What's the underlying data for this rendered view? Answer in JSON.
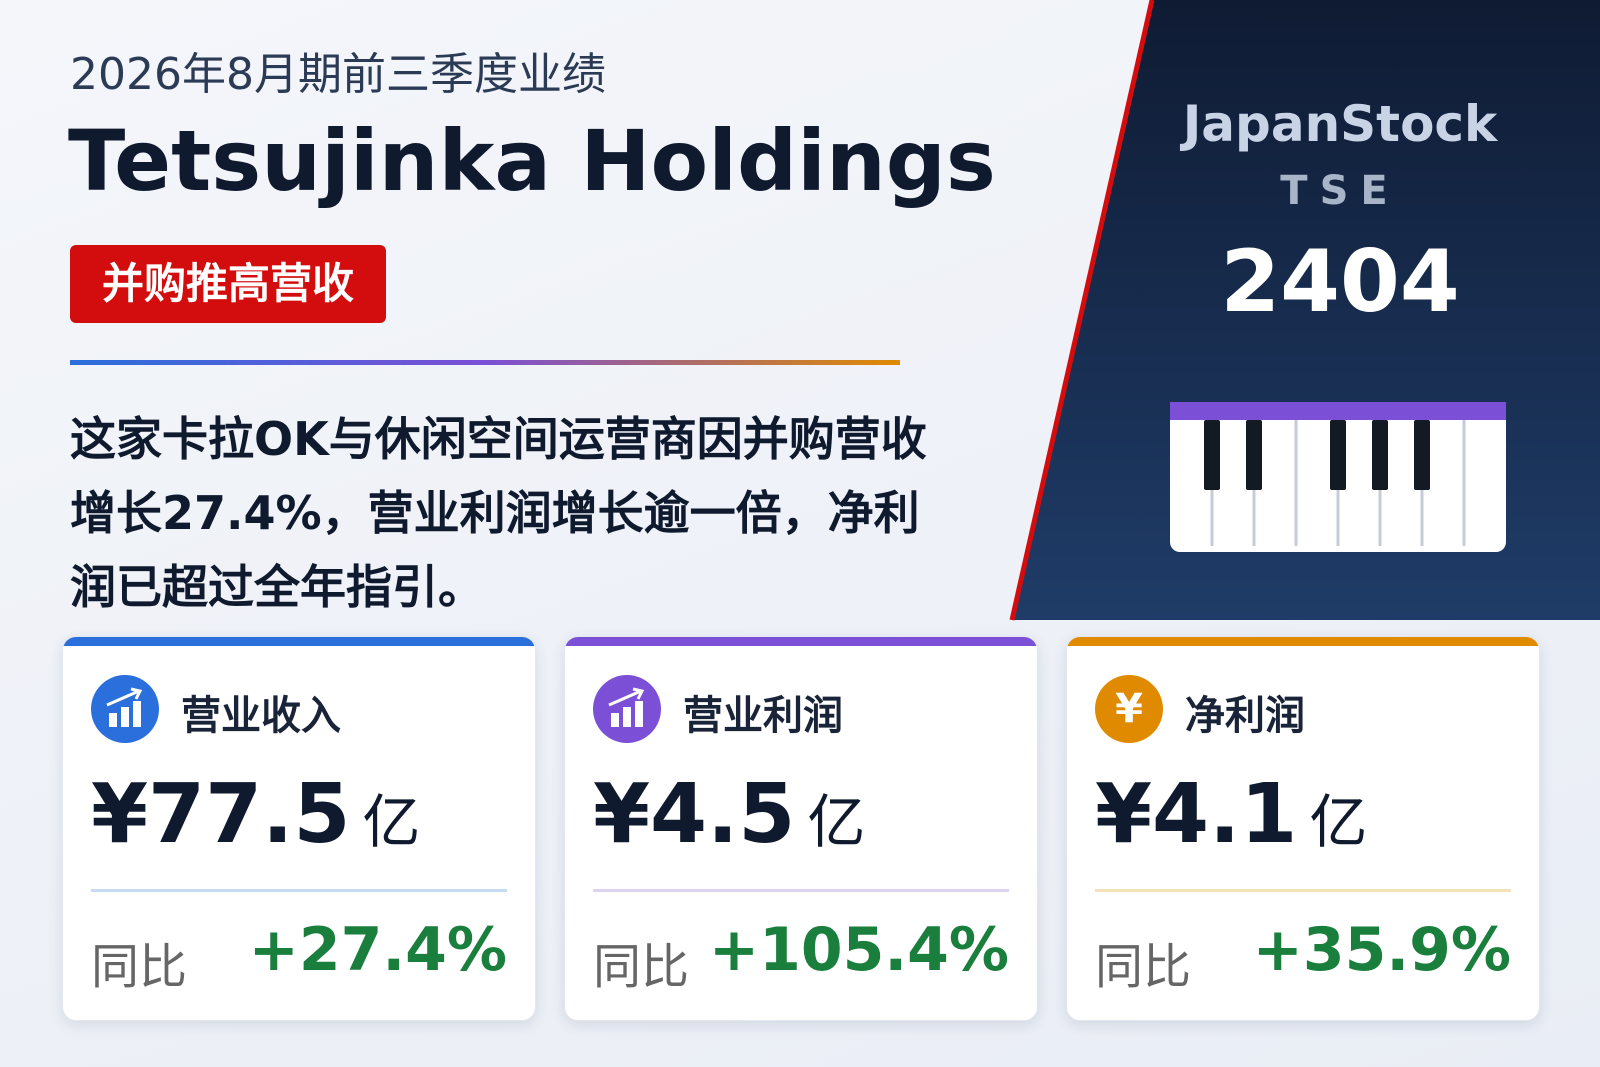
{
  "header": {
    "period": "2026年8月期前三季度业绩",
    "company": "Tetsujinka Holdings",
    "tag": "并购推高营收"
  },
  "summary": "这家卡拉OK与休闲空间运营商因并购营收增长27.4%，营业利润增长逾一倍，净利润已超过全年指引。",
  "badge": {
    "brand": "JapanStock",
    "exchange": "TSE",
    "code": "2404"
  },
  "cards": [
    {
      "label": "营业收入",
      "value": "¥77.5",
      "unit": "亿",
      "yoy_label": "同比",
      "yoy": "+27.4%"
    },
    {
      "label": "营业利润",
      "value": "¥4.5",
      "unit": "亿",
      "yoy_label": "同比",
      "yoy": "+105.4%"
    },
    {
      "label": "净利润",
      "icon_text": "¥",
      "value": "¥4.1",
      "unit": "亿",
      "yoy_label": "同比",
      "yoy": "+35.9%"
    }
  ]
}
